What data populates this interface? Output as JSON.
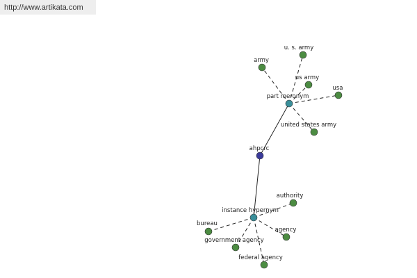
{
  "header": {
    "url": "http://www.artikata.com"
  },
  "nodes": [
    {
      "label": "ahpcrc"
    },
    {
      "label": "part meronym"
    },
    {
      "label": "instance hypernym"
    },
    {
      "label": "army"
    },
    {
      "label": "u. s. army"
    },
    {
      "label": "us army"
    },
    {
      "label": "usa"
    },
    {
      "label": "united states army"
    },
    {
      "label": "authority"
    },
    {
      "label": "bureau"
    },
    {
      "label": "agency"
    },
    {
      "label": "government agency"
    },
    {
      "label": "federal agency"
    }
  ]
}
